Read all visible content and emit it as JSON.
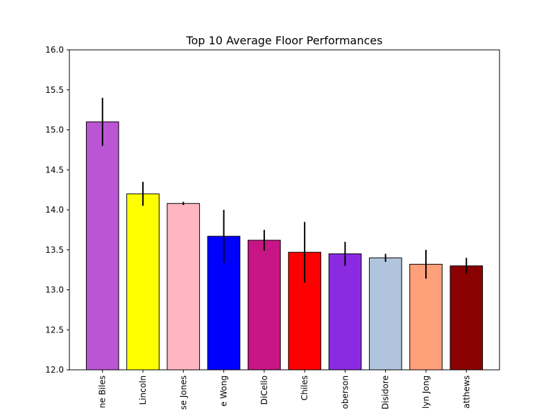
{
  "chart_data": {
    "type": "bar",
    "title": "Top 10 Average Floor Performances",
    "xlabel": "",
    "ylabel": "",
    "ylim": [
      12.0,
      16.0
    ],
    "yticks": [
      "12.0",
      "12.5",
      "13.0",
      "13.5",
      "14.0",
      "14.5",
      "15.0",
      "15.5",
      "16.0"
    ],
    "grid": false,
    "categories": [
      "ne Biles",
      "Lincoln",
      "se Jones",
      "e Wong",
      "DiCello",
      "Chiles",
      "oberson",
      "Disidore",
      "lyn Jong",
      "atthews"
    ],
    "values": [
      15.1,
      14.2,
      14.08,
      13.67,
      13.62,
      13.47,
      13.45,
      13.4,
      13.32,
      13.3
    ],
    "errors": [
      0.3,
      0.15,
      0.02,
      0.33,
      0.13,
      0.38,
      0.15,
      0.05,
      0.18,
      0.1
    ],
    "colors": [
      "#ba55d3",
      "#ffff00",
      "#ffb6c1",
      "#0000ff",
      "#c71585",
      "#ff0000",
      "#8a2be2",
      "#b0c4de",
      "#ffa07a",
      "#8b0000"
    ]
  }
}
